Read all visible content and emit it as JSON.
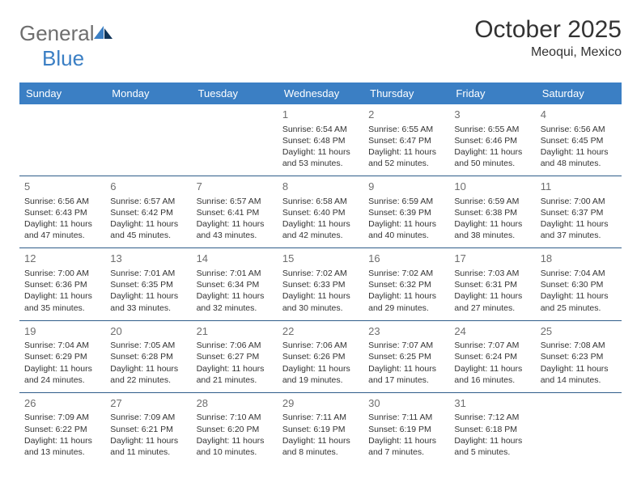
{
  "brand": {
    "part1": "General",
    "part2": "Blue"
  },
  "title": "October 2025",
  "location": "Meoqui, Mexico",
  "colors": {
    "header_bg": "#3b7fc4",
    "header_text": "#ffffff",
    "row_border": "#2f5d8a",
    "daynum": "#6e6e6e",
    "body_text": "#333333",
    "logo_gray": "#6e6e6e",
    "logo_blue": "#3b7fc4",
    "logo_dark": "#10355a"
  },
  "days_of_week": [
    "Sunday",
    "Monday",
    "Tuesday",
    "Wednesday",
    "Thursday",
    "Friday",
    "Saturday"
  ],
  "weeks": [
    [
      null,
      null,
      null,
      {
        "d": "1",
        "sr": "6:54 AM",
        "ss": "6:48 PM",
        "dl": "11 hours and 53 minutes."
      },
      {
        "d": "2",
        "sr": "6:55 AM",
        "ss": "6:47 PM",
        "dl": "11 hours and 52 minutes."
      },
      {
        "d": "3",
        "sr": "6:55 AM",
        "ss": "6:46 PM",
        "dl": "11 hours and 50 minutes."
      },
      {
        "d": "4",
        "sr": "6:56 AM",
        "ss": "6:45 PM",
        "dl": "11 hours and 48 minutes."
      }
    ],
    [
      {
        "d": "5",
        "sr": "6:56 AM",
        "ss": "6:43 PM",
        "dl": "11 hours and 47 minutes."
      },
      {
        "d": "6",
        "sr": "6:57 AM",
        "ss": "6:42 PM",
        "dl": "11 hours and 45 minutes."
      },
      {
        "d": "7",
        "sr": "6:57 AM",
        "ss": "6:41 PM",
        "dl": "11 hours and 43 minutes."
      },
      {
        "d": "8",
        "sr": "6:58 AM",
        "ss": "6:40 PM",
        "dl": "11 hours and 42 minutes."
      },
      {
        "d": "9",
        "sr": "6:59 AM",
        "ss": "6:39 PM",
        "dl": "11 hours and 40 minutes."
      },
      {
        "d": "10",
        "sr": "6:59 AM",
        "ss": "6:38 PM",
        "dl": "11 hours and 38 minutes."
      },
      {
        "d": "11",
        "sr": "7:00 AM",
        "ss": "6:37 PM",
        "dl": "11 hours and 37 minutes."
      }
    ],
    [
      {
        "d": "12",
        "sr": "7:00 AM",
        "ss": "6:36 PM",
        "dl": "11 hours and 35 minutes."
      },
      {
        "d": "13",
        "sr": "7:01 AM",
        "ss": "6:35 PM",
        "dl": "11 hours and 33 minutes."
      },
      {
        "d": "14",
        "sr": "7:01 AM",
        "ss": "6:34 PM",
        "dl": "11 hours and 32 minutes."
      },
      {
        "d": "15",
        "sr": "7:02 AM",
        "ss": "6:33 PM",
        "dl": "11 hours and 30 minutes."
      },
      {
        "d": "16",
        "sr": "7:02 AM",
        "ss": "6:32 PM",
        "dl": "11 hours and 29 minutes."
      },
      {
        "d": "17",
        "sr": "7:03 AM",
        "ss": "6:31 PM",
        "dl": "11 hours and 27 minutes."
      },
      {
        "d": "18",
        "sr": "7:04 AM",
        "ss": "6:30 PM",
        "dl": "11 hours and 25 minutes."
      }
    ],
    [
      {
        "d": "19",
        "sr": "7:04 AM",
        "ss": "6:29 PM",
        "dl": "11 hours and 24 minutes."
      },
      {
        "d": "20",
        "sr": "7:05 AM",
        "ss": "6:28 PM",
        "dl": "11 hours and 22 minutes."
      },
      {
        "d": "21",
        "sr": "7:06 AM",
        "ss": "6:27 PM",
        "dl": "11 hours and 21 minutes."
      },
      {
        "d": "22",
        "sr": "7:06 AM",
        "ss": "6:26 PM",
        "dl": "11 hours and 19 minutes."
      },
      {
        "d": "23",
        "sr": "7:07 AM",
        "ss": "6:25 PM",
        "dl": "11 hours and 17 minutes."
      },
      {
        "d": "24",
        "sr": "7:07 AM",
        "ss": "6:24 PM",
        "dl": "11 hours and 16 minutes."
      },
      {
        "d": "25",
        "sr": "7:08 AM",
        "ss": "6:23 PM",
        "dl": "11 hours and 14 minutes."
      }
    ],
    [
      {
        "d": "26",
        "sr": "7:09 AM",
        "ss": "6:22 PM",
        "dl": "11 hours and 13 minutes."
      },
      {
        "d": "27",
        "sr": "7:09 AM",
        "ss": "6:21 PM",
        "dl": "11 hours and 11 minutes."
      },
      {
        "d": "28",
        "sr": "7:10 AM",
        "ss": "6:20 PM",
        "dl": "11 hours and 10 minutes."
      },
      {
        "d": "29",
        "sr": "7:11 AM",
        "ss": "6:19 PM",
        "dl": "11 hours and 8 minutes."
      },
      {
        "d": "30",
        "sr": "7:11 AM",
        "ss": "6:19 PM",
        "dl": "11 hours and 7 minutes."
      },
      {
        "d": "31",
        "sr": "7:12 AM",
        "ss": "6:18 PM",
        "dl": "11 hours and 5 minutes."
      },
      null
    ]
  ],
  "labels": {
    "sunrise": "Sunrise:",
    "sunset": "Sunset:",
    "daylight": "Daylight:"
  }
}
